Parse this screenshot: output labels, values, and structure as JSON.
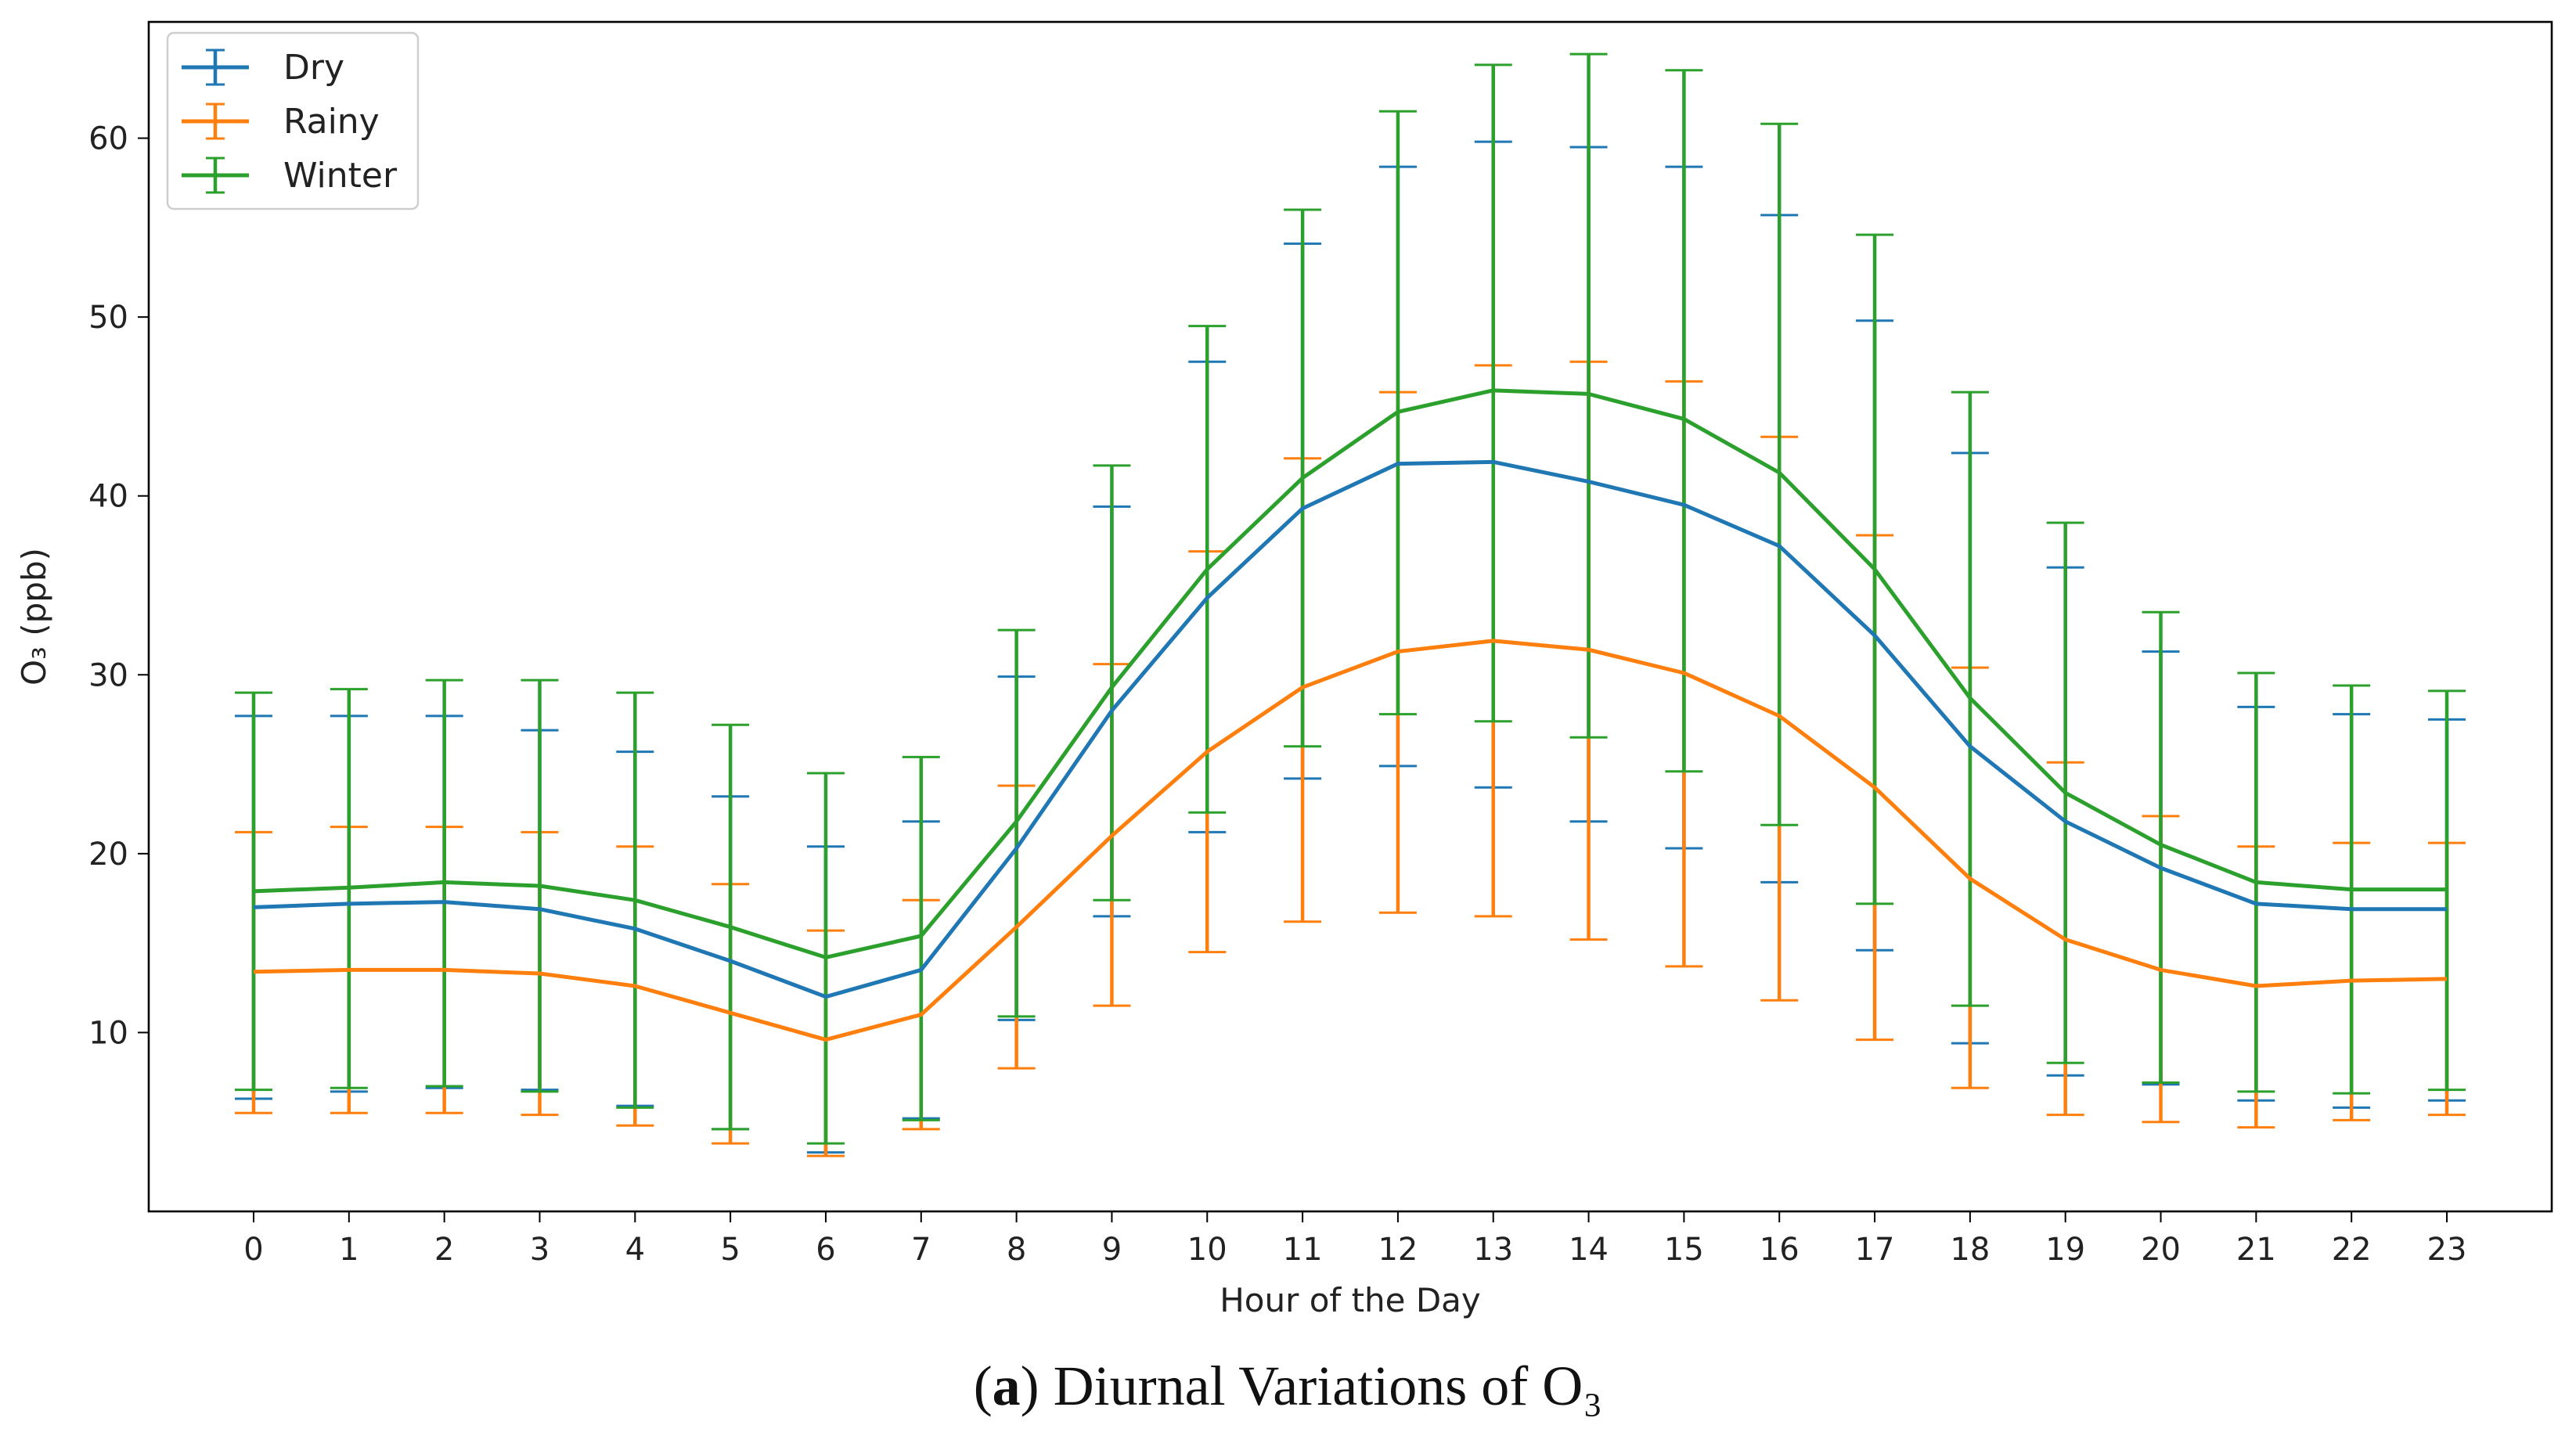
{
  "caption": {
    "label": "a",
    "text": "Diurnal Variations of O₃"
  },
  "chart_data": {
    "type": "line",
    "title": "",
    "xlabel": "Hour of the Day",
    "ylabel": "O₃ (ppb)",
    "x": [
      0,
      1,
      2,
      3,
      4,
      5,
      6,
      7,
      8,
      9,
      10,
      11,
      12,
      13,
      14,
      15,
      16,
      17,
      18,
      19,
      20,
      21,
      22,
      23
    ],
    "xlim": [
      -1.1,
      24.1
    ],
    "ylim": [
      0,
      66.5
    ],
    "yticks": [
      10,
      20,
      30,
      40,
      50,
      60
    ],
    "legend_position": "top-left",
    "series": [
      {
        "name": "Dry",
        "color": "#1f77b4",
        "values": [
          17.0,
          17.2,
          17.3,
          16.9,
          15.8,
          14.0,
          12.0,
          13.5,
          20.3,
          28.0,
          34.3,
          39.3,
          41.8,
          41.9,
          40.8,
          39.5,
          37.2,
          32.2,
          26.0,
          21.8,
          19.2,
          17.2,
          16.9,
          16.9
        ],
        "upper": [
          27.7,
          27.7,
          27.7,
          26.9,
          25.7,
          23.2,
          20.4,
          21.8,
          29.9,
          39.4,
          47.5,
          54.1,
          58.4,
          59.8,
          59.5,
          58.4,
          55.7,
          49.8,
          42.4,
          36.0,
          31.3,
          28.2,
          27.8,
          27.5
        ],
        "lower": [
          6.3,
          6.7,
          6.9,
          6.8,
          5.9,
          4.6,
          3.3,
          5.2,
          10.7,
          16.5,
          21.2,
          24.2,
          24.9,
          23.7,
          21.8,
          20.3,
          18.4,
          14.6,
          9.4,
          7.6,
          7.1,
          6.2,
          5.8,
          6.2
        ]
      },
      {
        "name": "Rainy",
        "color": "#ff7f0e",
        "values": [
          13.4,
          13.5,
          13.5,
          13.3,
          12.6,
          11.1,
          9.6,
          11.0,
          15.9,
          21.0,
          25.7,
          29.3,
          31.3,
          31.9,
          31.4,
          30.1,
          27.7,
          23.7,
          18.6,
          15.2,
          13.5,
          12.6,
          12.9,
          13.0
        ],
        "upper": [
          21.2,
          21.5,
          21.5,
          21.2,
          20.4,
          18.3,
          15.7,
          17.4,
          23.8,
          30.6,
          36.9,
          42.1,
          45.8,
          47.3,
          47.5,
          46.4,
          43.3,
          37.8,
          30.4,
          25.1,
          22.1,
          20.4,
          20.6,
          20.6
        ],
        "lower": [
          5.5,
          5.5,
          5.5,
          5.4,
          4.8,
          3.8,
          3.1,
          4.6,
          8.0,
          11.5,
          14.5,
          16.2,
          16.7,
          16.5,
          15.2,
          13.7,
          11.8,
          9.6,
          6.9,
          5.4,
          5.0,
          4.7,
          5.1,
          5.4
        ]
      },
      {
        "name": "Winter",
        "color": "#2ca02c",
        "values": [
          17.9,
          18.1,
          18.4,
          18.2,
          17.4,
          15.9,
          14.2,
          15.4,
          21.8,
          29.3,
          35.9,
          41.0,
          44.7,
          45.9,
          45.7,
          44.3,
          41.3,
          35.9,
          28.7,
          23.4,
          20.5,
          18.4,
          18.0,
          18.0
        ],
        "upper": [
          29.0,
          29.2,
          29.7,
          29.7,
          29.0,
          27.2,
          24.5,
          25.4,
          32.5,
          41.7,
          49.5,
          56.0,
          61.5,
          64.1,
          64.7,
          63.8,
          60.8,
          54.6,
          45.8,
          38.5,
          33.5,
          30.1,
          29.4,
          29.1
        ],
        "lower": [
          6.8,
          6.9,
          7.0,
          6.7,
          5.8,
          4.6,
          3.8,
          5.1,
          10.9,
          17.4,
          22.3,
          26.0,
          27.8,
          27.4,
          26.5,
          24.6,
          21.6,
          17.2,
          11.5,
          8.3,
          7.2,
          6.7,
          6.6,
          6.8
        ]
      }
    ]
  }
}
